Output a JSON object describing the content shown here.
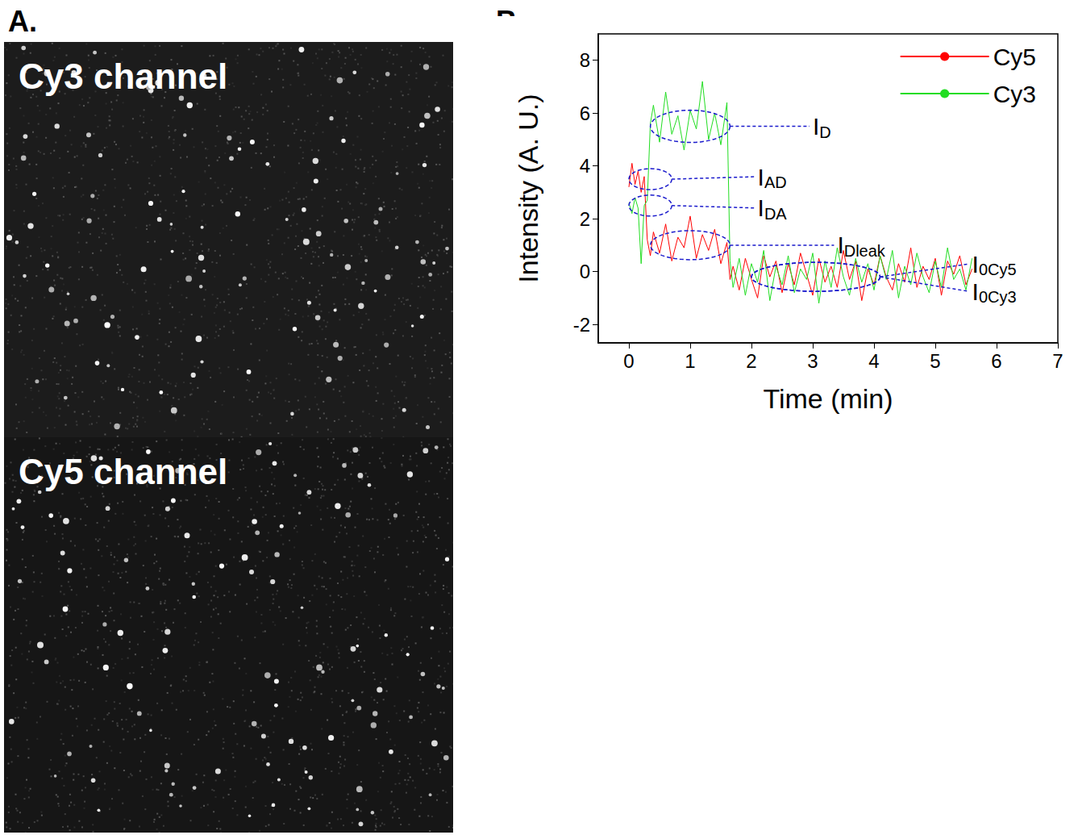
{
  "panel_a": {
    "label": "A.",
    "channels": [
      "Cy3 channel",
      "Cy5 channel"
    ]
  },
  "chart_data": {
    "type": "line",
    "panel_label": "B.",
    "x_label": "Time (min)",
    "y_label": "Intensity (A. U.)",
    "x": [
      0,
      0.05,
      0.1,
      0.15,
      0.2,
      0.25,
      0.3,
      0.35,
      0.4,
      0.5,
      0.6,
      0.7,
      0.8,
      0.9,
      1.0,
      1.1,
      1.2,
      1.3,
      1.4,
      1.5,
      1.6,
      1.65,
      1.7,
      1.8,
      1.9,
      2.0,
      2.1,
      2.2,
      2.3,
      2.4,
      2.5,
      2.6,
      2.7,
      2.8,
      2.9,
      3.0,
      3.1,
      3.2,
      3.3,
      3.4,
      3.5,
      3.6,
      3.7,
      3.8,
      3.9,
      4.0,
      4.1,
      4.2,
      4.3,
      4.4,
      4.5,
      4.6,
      4.7,
      4.8,
      4.9,
      5.0,
      5.1,
      5.2,
      5.3,
      5.4,
      5.5,
      5.6
    ],
    "series": [
      {
        "name": "Cy5",
        "color": "#ff0000",
        "values": [
          3.2,
          4.1,
          3.3,
          3.8,
          3.0,
          3.6,
          1.2,
          0.6,
          1.5,
          0.7,
          1.8,
          0.4,
          1.3,
          0.9,
          2.1,
          0.5,
          1.4,
          0.8,
          1.6,
          0.3,
          1.1,
          -0.3,
          0.2,
          -0.7,
          0.5,
          -0.3,
          -1.0,
          0.6,
          -0.2,
          0.4,
          -0.8,
          0.3,
          -0.5,
          0.7,
          -0.1,
          -0.9,
          0.5,
          -0.4,
          0.2,
          -0.6,
          0.8,
          -0.3,
          0.4,
          -1.1,
          0.1,
          -0.5,
          0.6,
          -0.2,
          -0.7,
          0.3,
          -0.4,
          0.9,
          -0.6,
          0.2,
          -0.3,
          0.5,
          -0.9,
          0.4,
          -0.1,
          0.6,
          -0.5,
          0.1
        ]
      },
      {
        "name": "Cy3",
        "color": "#22dd22",
        "values": [
          2.6,
          2.2,
          2.8,
          2.4,
          0.3,
          2.5,
          2.7,
          5.6,
          6.3,
          4.9,
          6.8,
          5.2,
          5.9,
          4.6,
          6.1,
          5.4,
          7.2,
          5.0,
          6.0,
          4.8,
          6.4,
          0.4,
          -0.6,
          0.5,
          -0.9,
          0.3,
          -0.4,
          0.8,
          -1.1,
          0.2,
          -0.5,
          0.6,
          -0.8,
          0.1,
          -0.3,
          0.7,
          -1.2,
          0.4,
          -0.6,
          0.9,
          -0.2,
          -0.9,
          0.5,
          -0.4,
          0.3,
          -0.7,
          0.6,
          -0.3,
          0.8,
          -1.0,
          0.2,
          -0.5,
          0.7,
          -0.2,
          -0.8,
          0.4,
          -0.6,
          0.9,
          -0.3,
          0.1,
          -0.7,
          0.5
        ]
      }
    ],
    "xlim": [
      -0.5,
      7
    ],
    "xticks": [
      0,
      1,
      2,
      3,
      4,
      5,
      6,
      7
    ],
    "ylim": [
      -2.7,
      9
    ],
    "yticks": [
      -2,
      0,
      2,
      4,
      6,
      8
    ],
    "grid": false,
    "legend": "top-right",
    "annotations": [
      {
        "label": {
          "text": "I",
          "subscript": "D"
        },
        "time_range": [
          0.35,
          1.65
        ],
        "y": 5.5
      },
      {
        "label": {
          "text": "I",
          "subscript": "AD"
        },
        "time_range": [
          0.0,
          0.7
        ],
        "y": 3.5
      },
      {
        "label": {
          "text": "I",
          "subscript": "DA"
        },
        "time_range": [
          0.0,
          0.7
        ],
        "y": 2.5
      },
      {
        "label": {
          "text": "I",
          "subscript": "Dleak"
        },
        "time_range": [
          0.35,
          1.65
        ],
        "y": 1.0
      },
      {
        "label": {
          "text": "I",
          "subscript": "0Cy5"
        },
        "time_range": [
          2.0,
          4.1
        ],
        "y": -0.2
      },
      {
        "label": {
          "text": "I",
          "subscript": "0Cy3"
        },
        "time_range": [
          2.0,
          4.1
        ],
        "y": -0.2
      }
    ]
  }
}
